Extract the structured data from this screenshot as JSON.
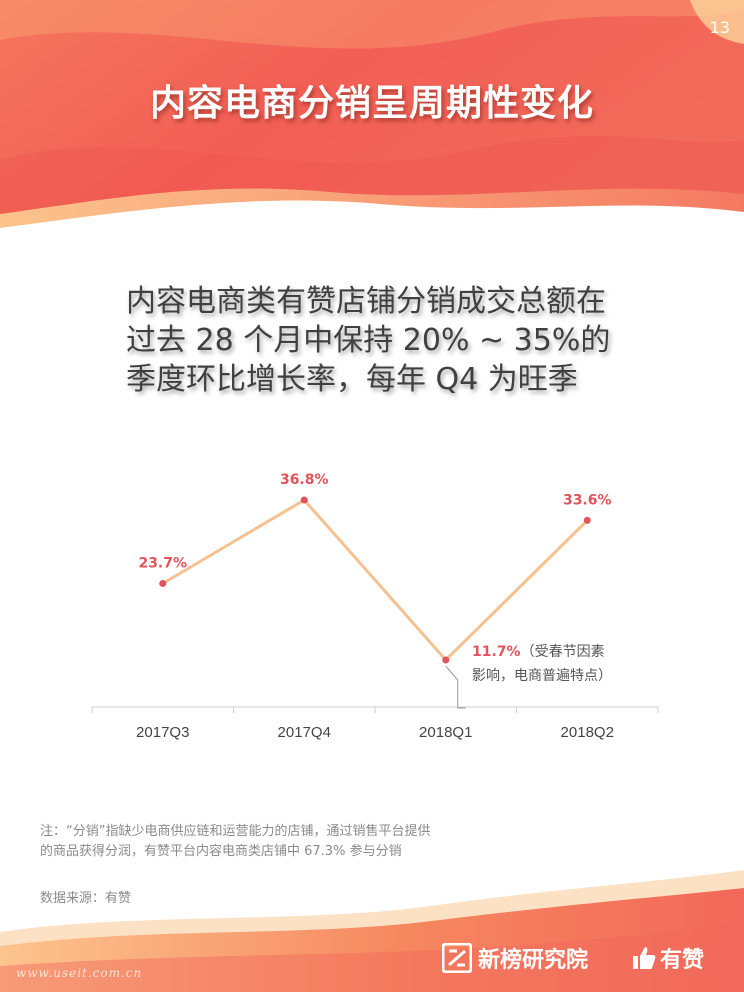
{
  "page": {
    "number": "13",
    "title": "内容电商分销呈周期性变化",
    "headline_lines": [
      "内容电商类有赞店铺分销成交总额在",
      "过去 28 个月中保持 20% ~ 35%的",
      "季度环比增长率，每年 Q4 为旺季"
    ]
  },
  "chart_data": {
    "type": "line",
    "categories": [
      "2017Q3",
      "2017Q4",
      "2018Q1",
      "2018Q2"
    ],
    "values": [
      23.7,
      36.8,
      11.7,
      33.6
    ],
    "value_labels": [
      "23.7%",
      "36.8%",
      "11.7%",
      "33.6%"
    ],
    "annotation": {
      "category": "2018Q1",
      "value_label": "11.7%",
      "text": "（受春节因素影响，电商普遍特点）"
    },
    "ylim": [
      0,
      40
    ],
    "grid": false,
    "legend": "none",
    "colors": {
      "line": "#f7c08f",
      "point": "#e0545c",
      "label": "#e0545c",
      "axis": "#cfcfcf"
    }
  },
  "footer": {
    "note_lines": [
      "注：“分销”指缺少电商供应链和运营能力的店铺，通过销售平台提供",
      "的商品获得分润，有赞平台内容电商类店铺中 67.3% 参与分销"
    ],
    "source": "数据来源：有赞",
    "logos": {
      "xinbang": "新榜研究院",
      "youzan": "有赞"
    },
    "watermark": "www.useit.com.cn"
  },
  "colors": {
    "banner_main": "#f2685a",
    "banner_light": "#fbb27c",
    "title_text": "#ffffff"
  }
}
